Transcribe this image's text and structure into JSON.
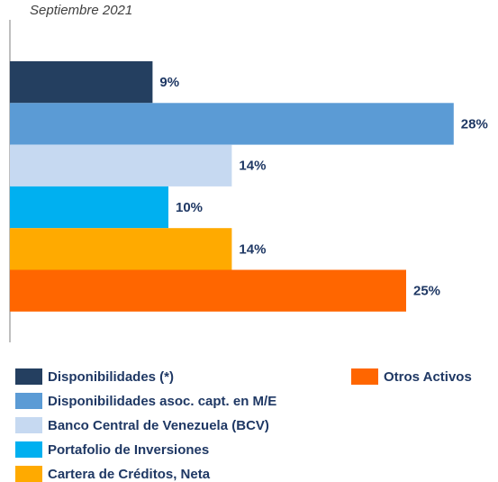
{
  "chart_data": {
    "type": "bar",
    "orientation": "horizontal",
    "subtitle": "Septiembre 2021",
    "series": [
      {
        "name": "Disponibilidades (*)",
        "color": "#243f60",
        "values": [
          9
        ],
        "value_labels": [
          "9%"
        ]
      },
      {
        "name": "Disponibilidades asoc. capt. en M/E",
        "color": "#5b9bd5",
        "values": [
          28
        ],
        "value_labels": [
          "28%"
        ]
      },
      {
        "name": "Banco Central de Venezuela (BCV)",
        "color": "#c6d9f1",
        "values": [
          14
        ],
        "value_labels": [
          "14%"
        ]
      },
      {
        "name": "Portafolio de Inversiones",
        "color": "#00b0f0",
        "values": [
          10
        ],
        "value_labels": [
          "10%"
        ]
      },
      {
        "name": "Cartera de Créditos, Neta",
        "color": "#ffaa00",
        "values": [
          14
        ],
        "value_labels": [
          "14%"
        ]
      },
      {
        "name": "Otros Activos",
        "color": "#ff6600",
        "values": [
          25
        ],
        "value_labels": [
          "25%"
        ]
      }
    ]
  }
}
